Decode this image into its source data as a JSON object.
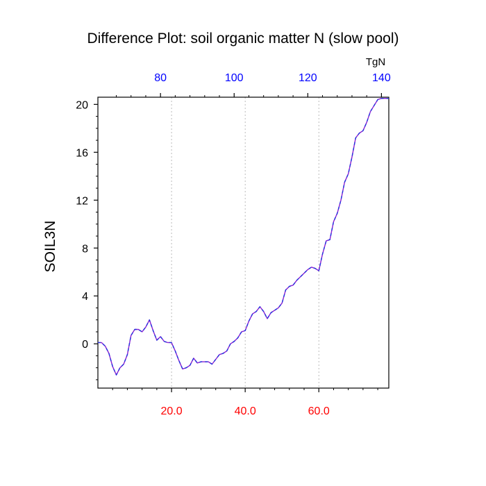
{
  "chart_data": {
    "type": "line",
    "title": "Difference Plot: soil organic matter N (slow pool)",
    "ylabel": "SOIL3N",
    "top_axis_unit": "TgN",
    "xlim": [
      0,
      79
    ],
    "ylim": [
      -3.7,
      20.6
    ],
    "y_ticks": [
      "0",
      "4",
      "8",
      "12",
      "16",
      "20"
    ],
    "y_tick_values": [
      0,
      4,
      8,
      12,
      16,
      20
    ],
    "bottom_ticks": [
      "20.0",
      "40.0",
      "60.0"
    ],
    "bottom_tick_values": [
      20,
      40,
      60
    ],
    "top_ticks": [
      "80",
      "100",
      "120",
      "140"
    ],
    "top_tick_values": [
      80,
      100,
      120,
      140
    ],
    "top_axis_offset": 63,
    "grid": "dotted vertical at bottom-axis ticks",
    "colors": {
      "line": "#8a1fd1",
      "line_dash": "#2233dd",
      "bottom_ticks": "#ff0000",
      "top_ticks": "#0000ff",
      "axis": "#000000",
      "grid": "#aaaaaa"
    },
    "series": [
      {
        "x": [
          0,
          1,
          2,
          3,
          4,
          5,
          6,
          7,
          8,
          9,
          10,
          11,
          12,
          13,
          14,
          15,
          16,
          17,
          18,
          19,
          20,
          21,
          22,
          23,
          24,
          25,
          26,
          27,
          28,
          29,
          30,
          31,
          32,
          33,
          34,
          35,
          36,
          37,
          38,
          39,
          40,
          41,
          42,
          43,
          44,
          45,
          46,
          47,
          48,
          49,
          50,
          51,
          52,
          53,
          54,
          55,
          56,
          57,
          58,
          59,
          60,
          61,
          62,
          63,
          64,
          65,
          66,
          67,
          68,
          69,
          70,
          71,
          72,
          73,
          74,
          75,
          76,
          77,
          78,
          79
        ],
        "values": [
          0.1,
          0.1,
          -0.2,
          -0.8,
          -1.9,
          -2.6,
          -2.0,
          -1.7,
          -0.9,
          0.7,
          1.2,
          1.2,
          1.0,
          1.4,
          2.0,
          1.1,
          0.3,
          0.6,
          0.2,
          0.1,
          0.1,
          -0.6,
          -1.4,
          -2.1,
          -2.0,
          -1.8,
          -1.2,
          -1.6,
          -1.5,
          -1.5,
          -1.5,
          -1.7,
          -1.3,
          -0.9,
          -0.8,
          -0.6,
          0.0,
          0.2,
          0.5,
          1.0,
          1.1,
          1.9,
          2.5,
          2.7,
          3.1,
          2.7,
          2.1,
          2.6,
          2.8,
          3.0,
          3.4,
          4.5,
          4.8,
          4.9,
          5.3,
          5.6,
          5.9,
          6.2,
          6.4,
          6.3,
          6.1,
          7.5,
          8.6,
          8.7,
          10.2,
          10.9,
          12.0,
          13.5,
          14.2,
          15.6,
          17.2,
          17.6,
          17.8,
          18.5,
          19.4,
          19.9,
          20.4,
          20.5,
          20.5,
          20.5
        ]
      }
    ]
  }
}
